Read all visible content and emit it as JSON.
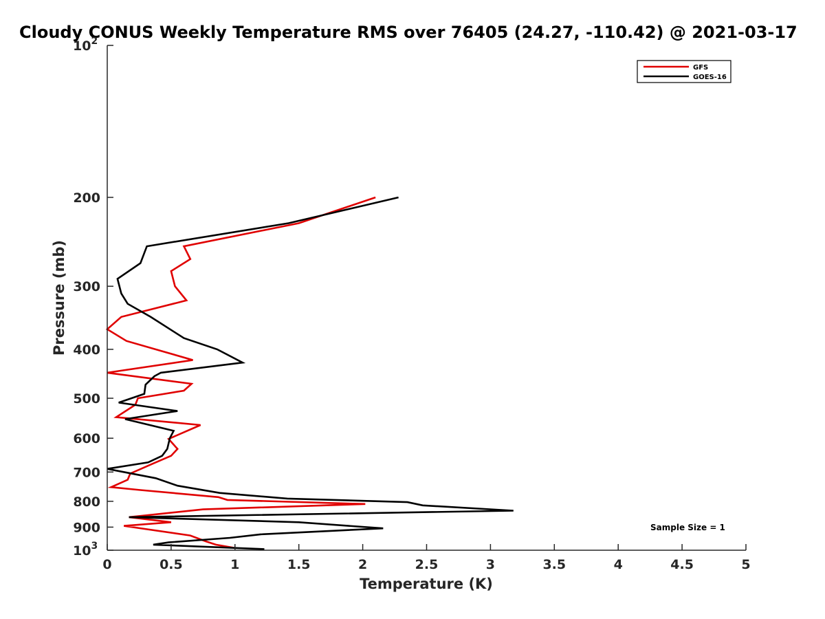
{
  "chart_data": {
    "type": "line",
    "title": "Cloudy CONUS Weekly Temperature RMS over 76405 (24.27, -110.42) @ 2021-03-17",
    "xlabel": "Temperature (K)",
    "ylabel": "Pressure (mb)",
    "xlim": [
      0,
      5
    ],
    "ylim": [
      100,
      1000
    ],
    "yscale": "log",
    "y_reversed": true,
    "x_ticks": [
      "0",
      "0.5",
      "1",
      "1.5",
      "2",
      "2.5",
      "3",
      "3.5",
      "4",
      "4.5",
      "5"
    ],
    "y_ticks": [
      {
        "value": 100,
        "base": "10",
        "exp": "2"
      },
      {
        "value": 200,
        "label": "200"
      },
      {
        "value": 300,
        "label": "300"
      },
      {
        "value": 400,
        "label": "400"
      },
      {
        "value": 500,
        "label": "500"
      },
      {
        "value": 600,
        "label": "600"
      },
      {
        "value": 700,
        "label": "700"
      },
      {
        "value": 800,
        "label": "800"
      },
      {
        "value": 900,
        "label": "900"
      },
      {
        "value": 1000,
        "base": "10",
        "exp": "3"
      }
    ],
    "legend_position": "top-right",
    "annotation": "Sample Size = 1",
    "series": [
      {
        "name": "GFS",
        "color": "#e00000",
        "points": [
          [
            2.1,
            200
          ],
          [
            1.5,
            225
          ],
          [
            0.6,
            250
          ],
          [
            0.65,
            265
          ],
          [
            0.5,
            280
          ],
          [
            0.53,
            300
          ],
          [
            0.62,
            320
          ],
          [
            0.11,
            345
          ],
          [
            0.0,
            365
          ],
          [
            0.15,
            385
          ],
          [
            0.67,
            420
          ],
          [
            0.0,
            445
          ],
          [
            0.66,
            468
          ],
          [
            0.6,
            483
          ],
          [
            0.24,
            500
          ],
          [
            0.22,
            515
          ],
          [
            0.07,
            545
          ],
          [
            0.73,
            565
          ],
          [
            0.48,
            602
          ],
          [
            0.55,
            630
          ],
          [
            0.5,
            650
          ],
          [
            0.35,
            675
          ],
          [
            0.18,
            705
          ],
          [
            0.16,
            725
          ],
          [
            0.03,
            750
          ],
          [
            0.26,
            760
          ],
          [
            0.87,
            785
          ],
          [
            0.94,
            795
          ],
          [
            2.02,
            810
          ],
          [
            0.75,
            830
          ],
          [
            0.17,
            860
          ],
          [
            0.5,
            880
          ],
          [
            0.13,
            895
          ],
          [
            0.65,
            935
          ],
          [
            0.77,
            960
          ],
          [
            0.85,
            975
          ],
          [
            1.0,
            990
          ]
        ]
      },
      {
        "name": "GOES-16",
        "color": "#000000",
        "points": [
          [
            2.28,
            200
          ],
          [
            1.42,
            225
          ],
          [
            0.31,
            250
          ],
          [
            0.26,
            270
          ],
          [
            0.08,
            290
          ],
          [
            0.11,
            310
          ],
          [
            0.16,
            325
          ],
          [
            0.34,
            345
          ],
          [
            0.6,
            380
          ],
          [
            0.86,
            400
          ],
          [
            1.06,
            425
          ],
          [
            0.42,
            445
          ],
          [
            0.37,
            452
          ],
          [
            0.3,
            470
          ],
          [
            0.29,
            490
          ],
          [
            0.09,
            510
          ],
          [
            0.55,
            530
          ],
          [
            0.14,
            550
          ],
          [
            0.52,
            580
          ],
          [
            0.49,
            600
          ],
          [
            0.47,
            630
          ],
          [
            0.43,
            650
          ],
          [
            0.32,
            670
          ],
          [
            0.0,
            690
          ],
          [
            0.38,
            720
          ],
          [
            0.55,
            745
          ],
          [
            0.88,
            770
          ],
          [
            1.41,
            790
          ],
          [
            2.35,
            803
          ],
          [
            2.47,
            815
          ],
          [
            3.18,
            835
          ],
          [
            0.17,
            860
          ],
          [
            1.5,
            880
          ],
          [
            2.16,
            905
          ],
          [
            1.2,
            930
          ],
          [
            0.96,
            945
          ],
          [
            0.48,
            965
          ],
          [
            0.36,
            975
          ],
          [
            1.23,
            995
          ]
        ]
      }
    ]
  }
}
